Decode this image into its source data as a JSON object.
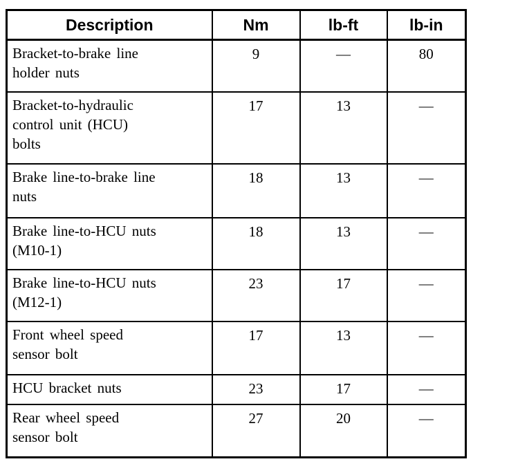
{
  "table": {
    "border_color": "#000000",
    "background": "#ffffff",
    "text_color": "#000000",
    "columns": [
      {
        "label": "Description"
      },
      {
        "label": "Nm"
      },
      {
        "label": "lb-ft"
      },
      {
        "label": "lb-in"
      }
    ],
    "rows": [
      {
        "description": "Bracket-to-brake line\nholder nuts",
        "nm": "9",
        "lb_ft": "—",
        "lb_in": "80"
      },
      {
        "description": "Bracket-to-hydraulic\ncontrol unit (HCU)\nbolts",
        "nm": "17",
        "lb_ft": "13",
        "lb_in": "—"
      },
      {
        "description": "Brake line-to-brake line\nnuts",
        "nm": "18",
        "lb_ft": "13",
        "lb_in": "—"
      },
      {
        "description": "Brake line-to-HCU nuts\n(M10-1)",
        "nm": "18",
        "lb_ft": "13",
        "lb_in": "—"
      },
      {
        "description": "Brake line-to-HCU nuts\n(M12-1)",
        "nm": "23",
        "lb_ft": "17",
        "lb_in": "—"
      },
      {
        "description": "Front wheel speed\nsensor bolt",
        "nm": "17",
        "lb_ft": "13",
        "lb_in": "—"
      },
      {
        "description": "HCU bracket nuts",
        "nm": "23",
        "lb_ft": "17",
        "lb_in": "—"
      },
      {
        "description": "Rear wheel speed\nsensor bolt",
        "nm": "27",
        "lb_ft": "20",
        "lb_in": "—"
      }
    ]
  }
}
